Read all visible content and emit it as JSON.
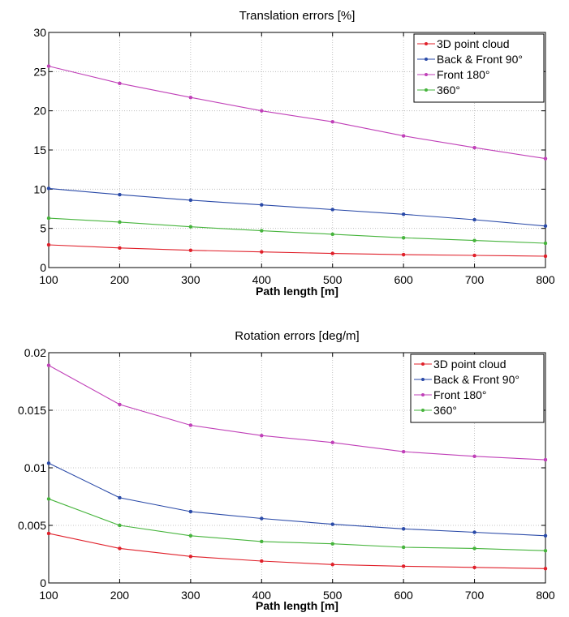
{
  "chart_data": [
    {
      "type": "line",
      "title": "Translation errors [%]",
      "xlabel": "Path length [m]",
      "ylabel": "",
      "x": [
        100,
        200,
        300,
        400,
        500,
        600,
        700,
        800
      ],
      "xlim": [
        100,
        800
      ],
      "ylim": [
        0,
        30
      ],
      "xticks": [
        "100",
        "200",
        "300",
        "400",
        "500",
        "600",
        "700",
        "800"
      ],
      "yticks": [
        0,
        5,
        10,
        15,
        20,
        25,
        30
      ],
      "ytick_labels": [
        "0",
        "5",
        "10",
        "15",
        "20",
        "25",
        "30"
      ],
      "grid": true,
      "legend_position": "top-right",
      "series": [
        {
          "name": "3D point cloud",
          "color": "#e0202a",
          "values": [
            2.9,
            2.5,
            2.2,
            2.0,
            1.8,
            1.65,
            1.55,
            1.45
          ]
        },
        {
          "name": "Back & Front 90°",
          "color": "#2a4aa8",
          "values": [
            10.1,
            9.3,
            8.6,
            8.0,
            7.4,
            6.8,
            6.1,
            5.3
          ]
        },
        {
          "name": "Front 180°",
          "color": "#c040b8",
          "values": [
            25.7,
            23.5,
            21.7,
            20.0,
            18.6,
            16.8,
            15.3,
            13.9
          ]
        },
        {
          "name": "360°",
          "color": "#46b43c",
          "values": [
            6.3,
            5.8,
            5.2,
            4.7,
            4.25,
            3.8,
            3.45,
            3.1
          ]
        }
      ]
    },
    {
      "type": "line",
      "title": "Rotation errors  [deg/m]",
      "xlabel": "Path length [m]",
      "ylabel": "",
      "x": [
        100,
        200,
        300,
        400,
        500,
        600,
        700,
        800
      ],
      "xlim": [
        100,
        800
      ],
      "ylim": [
        0,
        0.02
      ],
      "xticks": [
        "100",
        "200",
        "300",
        "400",
        "500",
        "600",
        "700",
        "800"
      ],
      "yticks": [
        0,
        0.005,
        0.01,
        0.015,
        0.02
      ],
      "ytick_labels": [
        "0",
        "0.005",
        "0.01",
        "0.015",
        "0.02"
      ],
      "grid": true,
      "legend_position": "top-right",
      "series": [
        {
          "name": "3D point cloud",
          "color": "#e0202a",
          "values": [
            0.0043,
            0.003,
            0.0023,
            0.0019,
            0.0016,
            0.00145,
            0.00135,
            0.00125
          ]
        },
        {
          "name": "Back & Front 90°",
          "color": "#2a4aa8",
          "values": [
            0.0104,
            0.0074,
            0.0062,
            0.0056,
            0.0051,
            0.0047,
            0.0044,
            0.0041
          ]
        },
        {
          "name": "Front 180°",
          "color": "#c040b8",
          "values": [
            0.0189,
            0.0155,
            0.0137,
            0.0128,
            0.0122,
            0.0114,
            0.011,
            0.0107
          ]
        },
        {
          "name": "360°",
          "color": "#46b43c",
          "values": [
            0.0073,
            0.005,
            0.0041,
            0.0036,
            0.0034,
            0.0031,
            0.003,
            0.0028
          ]
        }
      ]
    }
  ]
}
